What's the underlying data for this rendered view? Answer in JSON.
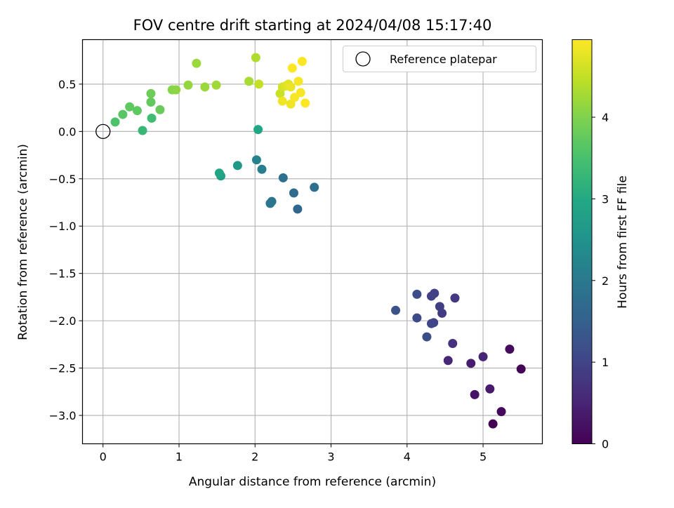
{
  "chart_data": {
    "type": "scatter",
    "title": "FOV centre drift starting at 2024/04/08 15:17:40",
    "xlabel": "Angular distance from reference (arcmin)",
    "ylabel": "Rotation from reference (arcmin)",
    "xlim": [
      -0.27,
      5.78
    ],
    "ylim": [
      -3.3,
      0.97
    ],
    "xticks": [
      0,
      1,
      2,
      3,
      4,
      5
    ],
    "xtick_labels": [
      "0",
      "1",
      "2",
      "3",
      "4",
      "5"
    ],
    "yticks": [
      0.5,
      0.0,
      -0.5,
      -1.0,
      -1.5,
      -2.0,
      -2.5,
      -3.0
    ],
    "ytick_labels": [
      "0.5",
      "0.0",
      "−0.5",
      "−1.0",
      "−1.5",
      "−2.0",
      "−2.5",
      "−3.0"
    ],
    "grid": true,
    "legend": {
      "position": "top-right",
      "entries": [
        "Reference platepar"
      ]
    },
    "reference_point": {
      "x": 0.0,
      "y": 0.0
    },
    "colorbar": {
      "label": "Hours from first FF file",
      "range": [
        0,
        4.95
      ],
      "ticks": [
        0,
        1,
        2,
        3,
        4
      ],
      "tick_labels": [
        "0",
        "1",
        "2",
        "3",
        "4"
      ],
      "colormap": "viridis"
    },
    "points": [
      {
        "x": 5.13,
        "y": -3.09,
        "c": 0.0
      },
      {
        "x": 5.24,
        "y": -2.96,
        "c": 0.1
      },
      {
        "x": 5.5,
        "y": -2.51,
        "c": 0.05
      },
      {
        "x": 5.35,
        "y": -2.3,
        "c": 0.15
      },
      {
        "x": 4.89,
        "y": -2.78,
        "c": 0.25
      },
      {
        "x": 5.09,
        "y": -2.72,
        "c": 0.35
      },
      {
        "x": 4.84,
        "y": -2.45,
        "c": 0.4
      },
      {
        "x": 5.0,
        "y": -2.38,
        "c": 0.5
      },
      {
        "x": 4.54,
        "y": -2.42,
        "c": 0.55
      },
      {
        "x": 4.6,
        "y": -2.24,
        "c": 0.7
      },
      {
        "x": 4.63,
        "y": -1.76,
        "c": 0.8
      },
      {
        "x": 4.46,
        "y": -1.92,
        "c": 0.85
      },
      {
        "x": 4.43,
        "y": -1.85,
        "c": 0.9
      },
      {
        "x": 4.36,
        "y": -1.71,
        "c": 0.95
      },
      {
        "x": 4.32,
        "y": -1.74,
        "c": 0.95
      },
      {
        "x": 4.35,
        "y": -2.02,
        "c": 1.0
      },
      {
        "x": 4.32,
        "y": -2.03,
        "c": 1.05
      },
      {
        "x": 4.26,
        "y": -2.17,
        "c": 1.15
      },
      {
        "x": 4.13,
        "y": -1.97,
        "c": 1.1
      },
      {
        "x": 4.13,
        "y": -1.72,
        "c": 1.15
      },
      {
        "x": 3.85,
        "y": -1.89,
        "c": 1.25
      },
      {
        "x": 2.56,
        "y": -0.82,
        "c": 1.65
      },
      {
        "x": 2.51,
        "y": -0.65,
        "c": 1.7
      },
      {
        "x": 2.78,
        "y": -0.59,
        "c": 1.8
      },
      {
        "x": 2.37,
        "y": -0.49,
        "c": 1.85
      },
      {
        "x": 2.22,
        "y": -0.74,
        "c": 1.9
      },
      {
        "x": 2.2,
        "y": -0.76,
        "c": 1.95
      },
      {
        "x": 2.09,
        "y": -0.4,
        "c": 2.1
      },
      {
        "x": 2.02,
        "y": -0.3,
        "c": 2.2
      },
      {
        "x": 1.77,
        "y": -0.36,
        "c": 2.65
      },
      {
        "x": 1.55,
        "y": -0.47,
        "c": 2.8
      },
      {
        "x": 1.53,
        "y": -0.44,
        "c": 2.9
      },
      {
        "x": 2.04,
        "y": 0.02,
        "c": 2.95
      },
      {
        "x": 0.52,
        "y": 0.01,
        "c": 3.3
      },
      {
        "x": 0.64,
        "y": 0.14,
        "c": 3.4
      },
      {
        "x": 0.16,
        "y": 0.1,
        "c": 3.55
      },
      {
        "x": 0.26,
        "y": 0.18,
        "c": 3.65
      },
      {
        "x": 0.35,
        "y": 0.26,
        "c": 3.7
      },
      {
        "x": 0.45,
        "y": 0.22,
        "c": 3.7
      },
      {
        "x": 0.63,
        "y": 0.31,
        "c": 3.75
      },
      {
        "x": 0.75,
        "y": 0.23,
        "c": 3.8
      },
      {
        "x": 0.63,
        "y": 0.4,
        "c": 3.85
      },
      {
        "x": 0.91,
        "y": 0.44,
        "c": 4.05
      },
      {
        "x": 0.96,
        "y": 0.44,
        "c": 4.1
      },
      {
        "x": 1.12,
        "y": 0.49,
        "c": 4.15
      },
      {
        "x": 1.34,
        "y": 0.47,
        "c": 4.2
      },
      {
        "x": 1.49,
        "y": 0.49,
        "c": 4.25
      },
      {
        "x": 1.23,
        "y": 0.72,
        "c": 4.2
      },
      {
        "x": 1.92,
        "y": 0.53,
        "c": 4.3
      },
      {
        "x": 2.01,
        "y": 0.78,
        "c": 4.35
      },
      {
        "x": 2.05,
        "y": 0.5,
        "c": 4.5
      },
      {
        "x": 2.33,
        "y": 0.4,
        "c": 4.55
      },
      {
        "x": 2.36,
        "y": 0.47,
        "c": 4.6
      },
      {
        "x": 2.4,
        "y": 0.48,
        "c": 4.7
      },
      {
        "x": 2.44,
        "y": 0.5,
        "c": 4.75
      },
      {
        "x": 2.47,
        "y": 0.47,
        "c": 4.8
      },
      {
        "x": 2.36,
        "y": 0.32,
        "c": 4.85
      },
      {
        "x": 2.47,
        "y": 0.29,
        "c": 4.85
      },
      {
        "x": 2.52,
        "y": 0.36,
        "c": 4.9
      },
      {
        "x": 2.57,
        "y": 0.53,
        "c": 4.9
      },
      {
        "x": 2.6,
        "y": 0.41,
        "c": 4.9
      },
      {
        "x": 2.66,
        "y": 0.3,
        "c": 4.95
      },
      {
        "x": 2.49,
        "y": 0.67,
        "c": 4.95
      },
      {
        "x": 2.62,
        "y": 0.74,
        "c": 4.95
      }
    ]
  }
}
